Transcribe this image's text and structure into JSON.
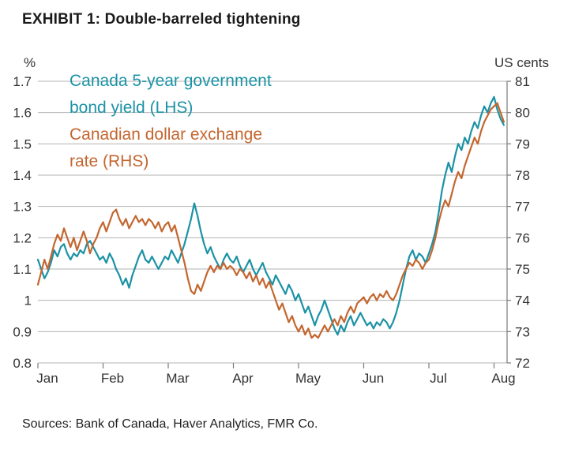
{
  "header": {
    "title": "EXHIBIT 1: Double-barreled tightening"
  },
  "footer": {
    "source": "Sources: Bank of Canada, Haver Analytics, FMR Co."
  },
  "legend": {
    "items": [
      {
        "label": "Canada 5-year government bond yield (LHS)",
        "lines": [
          "Canada 5-year government",
          "bond yield (LHS)"
        ],
        "color": "#1b92a5"
      },
      {
        "label": "Canadian dollar exchange rate (RHS)",
        "lines": [
          "Canadian dollar exchange",
          "rate (RHS)"
        ],
        "color": "#c4662f"
      }
    ]
  },
  "style": {
    "grid_color": "#b3b3b3",
    "axis_color": "#7a7a7a",
    "tick_text_color": "#333333"
  },
  "chart_data": {
    "type": "line",
    "title": "EXHIBIT 1: Double-barreled tightening",
    "grid": "horizontal",
    "legend_position": "top-left inside plot, colored text",
    "x_axis": {
      "tick_labels": [
        "Jan",
        "Feb",
        "Mar",
        "Apr",
        "May",
        "Jun",
        "Jul",
        "Aug"
      ],
      "tick_values": [
        0,
        1,
        2,
        3,
        4,
        5,
        6,
        7
      ],
      "range": [
        0,
        7.2
      ],
      "unit": "months (Jan–Aug)",
      "sample_start": 0,
      "sample_step": 0.05
    },
    "left_axis": {
      "unit": "%",
      "range": [
        0.8,
        1.7
      ],
      "tick_labels": [
        "1.7",
        "1.6",
        "1.5",
        "1.4",
        "1.3",
        "1.2",
        "1.1",
        "1",
        "0.9",
        "0.8"
      ],
      "tick_values": [
        1.7,
        1.6,
        1.5,
        1.4,
        1.3,
        1.2,
        1.1,
        1.0,
        0.9,
        0.8
      ]
    },
    "right_axis": {
      "unit": "US cents",
      "range": [
        72,
        81
      ],
      "tick_labels": [
        "81",
        "80",
        "79",
        "78",
        "77",
        "76",
        "75",
        "74",
        "73",
        "72"
      ],
      "tick_values": [
        81,
        80,
        79,
        78,
        77,
        76,
        75,
        74,
        73,
        72
      ]
    },
    "series": [
      {
        "name": "Canada 5-year government bond yield (LHS)",
        "axis": "left",
        "color": "#1b92a5",
        "values": [
          1.13,
          1.1,
          1.07,
          1.09,
          1.12,
          1.16,
          1.14,
          1.17,
          1.18,
          1.15,
          1.13,
          1.15,
          1.14,
          1.16,
          1.15,
          1.18,
          1.19,
          1.17,
          1.15,
          1.13,
          1.14,
          1.12,
          1.15,
          1.13,
          1.1,
          1.08,
          1.05,
          1.07,
          1.04,
          1.08,
          1.11,
          1.14,
          1.16,
          1.13,
          1.12,
          1.14,
          1.12,
          1.1,
          1.12,
          1.14,
          1.13,
          1.16,
          1.14,
          1.12,
          1.15,
          1.18,
          1.22,
          1.26,
          1.31,
          1.27,
          1.22,
          1.18,
          1.15,
          1.17,
          1.14,
          1.12,
          1.1,
          1.13,
          1.15,
          1.13,
          1.12,
          1.14,
          1.11,
          1.09,
          1.11,
          1.13,
          1.1,
          1.08,
          1.1,
          1.12,
          1.09,
          1.07,
          1.05,
          1.08,
          1.06,
          1.04,
          1.02,
          1.05,
          1.03,
          1.0,
          1.02,
          0.99,
          0.96,
          0.98,
          0.95,
          0.92,
          0.95,
          0.97,
          1.0,
          0.97,
          0.94,
          0.91,
          0.89,
          0.92,
          0.9,
          0.93,
          0.95,
          0.92,
          0.94,
          0.96,
          0.94,
          0.92,
          0.93,
          0.91,
          0.93,
          0.92,
          0.94,
          0.93,
          0.91,
          0.93,
          0.96,
          1.0,
          1.05,
          1.1,
          1.14,
          1.16,
          1.13,
          1.15,
          1.14,
          1.12,
          1.15,
          1.18,
          1.22,
          1.28,
          1.35,
          1.4,
          1.44,
          1.41,
          1.46,
          1.5,
          1.48,
          1.52,
          1.5,
          1.54,
          1.57,
          1.55,
          1.59,
          1.62,
          1.6,
          1.63,
          1.65,
          1.61,
          1.58,
          1.56
        ]
      },
      {
        "name": "Canadian dollar exchange rate (RHS)",
        "axis": "right",
        "color": "#c4662f",
        "values": [
          74.5,
          74.9,
          75.3,
          75.0,
          75.4,
          75.8,
          76.1,
          75.9,
          76.3,
          76.0,
          75.7,
          76.0,
          75.6,
          75.9,
          76.2,
          75.9,
          75.5,
          75.8,
          76.0,
          76.3,
          76.5,
          76.2,
          76.5,
          76.8,
          76.9,
          76.6,
          76.4,
          76.6,
          76.3,
          76.5,
          76.7,
          76.5,
          76.6,
          76.4,
          76.6,
          76.5,
          76.3,
          76.5,
          76.2,
          76.4,
          76.5,
          76.2,
          76.4,
          76.0,
          75.6,
          75.2,
          74.7,
          74.3,
          74.2,
          74.5,
          74.3,
          74.6,
          74.9,
          75.1,
          74.9,
          75.1,
          75.0,
          75.2,
          75.0,
          75.1,
          75.0,
          74.8,
          75.0,
          74.9,
          74.7,
          74.9,
          74.6,
          74.8,
          74.5,
          74.7,
          74.4,
          74.6,
          74.3,
          74.0,
          73.7,
          73.9,
          73.6,
          73.3,
          73.5,
          73.2,
          73.0,
          73.2,
          72.9,
          73.1,
          72.8,
          72.9,
          72.8,
          73.0,
          73.2,
          73.0,
          73.2,
          73.4,
          73.2,
          73.5,
          73.3,
          73.6,
          73.8,
          73.6,
          73.9,
          74.0,
          74.1,
          73.9,
          74.1,
          74.2,
          74.0,
          74.2,
          74.1,
          74.3,
          74.1,
          74.0,
          74.2,
          74.5,
          74.8,
          75.0,
          75.2,
          75.1,
          75.3,
          75.2,
          75.0,
          75.2,
          75.3,
          75.6,
          76.0,
          76.5,
          76.9,
          77.2,
          77.0,
          77.4,
          77.8,
          78.1,
          77.9,
          78.3,
          78.6,
          78.9,
          79.2,
          79.0,
          79.4,
          79.7,
          79.9,
          80.1,
          80.2,
          80.3,
          80.0,
          79.7
        ]
      }
    ]
  }
}
